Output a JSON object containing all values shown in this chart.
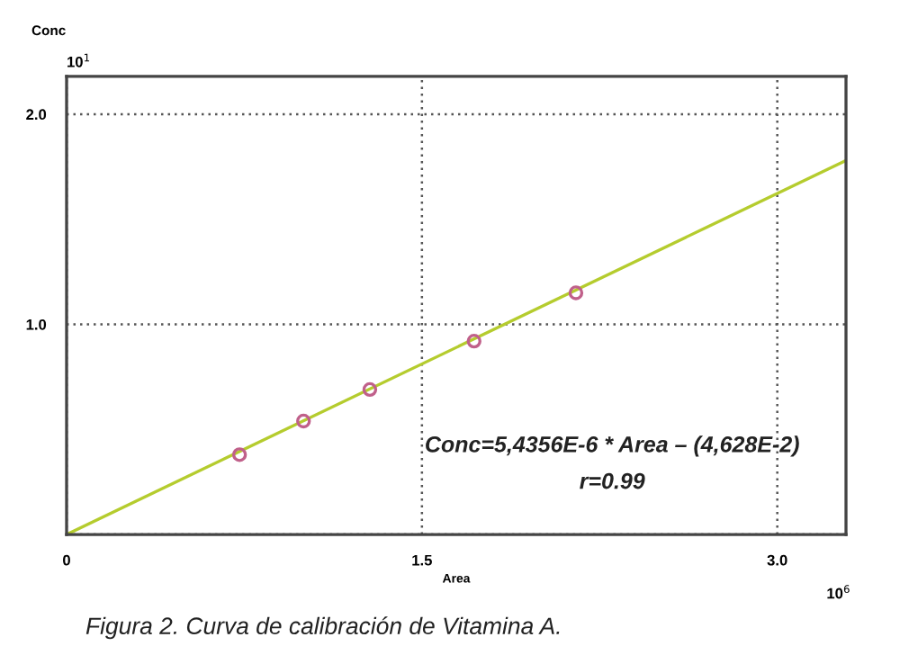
{
  "chart_data": {
    "type": "scatter",
    "xlabel": "Area",
    "ylabel": "Conc",
    "series": [
      {
        "color": "#c0608a",
        "marker": "circle",
        "x": [
          0.73,
          1.0,
          1.28,
          1.72,
          2.15
        ],
        "values": [
          0.38,
          0.54,
          0.69,
          0.92,
          1.15
        ]
      },
      {
        "type": "line",
        "color": "#b5cc2e",
        "marker": "none",
        "line_style": "solid",
        "x": [
          0,
          3.29
        ],
        "values": [
          0,
          1.78
        ]
      }
    ],
    "xlim": [
      0,
      3.29
    ],
    "ylim": [
      0,
      2.18
    ],
    "xticks": [
      0,
      1.5,
      {
        "value": 3,
        "label": "3.0"
      }
    ],
    "yticks": [
      {
        "value": 0,
        "label": null
      },
      {
        "value": 1,
        "label": "1.0"
      },
      {
        "value": 2,
        "label": "2.0"
      }
    ],
    "grid": true,
    "annotations": [
      "Conc=5,4356E-6 * Area – (4,628E-2)",
      "r=0.99",
      "10$^{1}$",
      "10$^{6}$",
      "Figura 2. Curva de calibración de Vitamina A."
    ]
  }
}
